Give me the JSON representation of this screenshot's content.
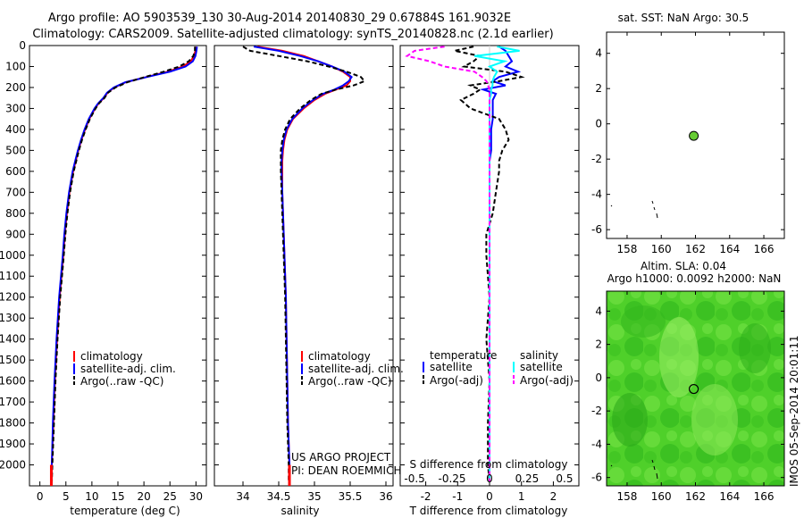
{
  "header": {
    "title_line1": "Argo profile: AO 5903539_130 30-Aug-2014 20140830_29 0.67884S 161.9032E",
    "title_line2": "Climatology: CARS2009. Satellite-adjusted climatology: synTS_20140828.nc (2.1d earlier)"
  },
  "side_text": "IMOS 05-Sep-2014 20:01:11",
  "project_text": [
    "US ARGO PROJECT",
    "PI: DEAN ROEMMICH"
  ],
  "colors": {
    "climatology": "#ff0000",
    "satellite_adj": "#0000ff",
    "argo": "#000000",
    "salinity_sat": "#00ffff",
    "salinity_argo": "#ff00ff",
    "point": "#66cc33",
    "map_bg": "#44cc22"
  },
  "chart_data": [
    {
      "id": "temperature",
      "type": "line",
      "xlabel": "temperature (deg C)",
      "ylabel": "",
      "xlim": [
        -2,
        32
      ],
      "ylim": [
        2100,
        0
      ],
      "xticks": [
        0,
        5,
        10,
        15,
        20,
        25,
        30
      ],
      "yticks": [
        0,
        100,
        200,
        300,
        400,
        500,
        600,
        700,
        800,
        900,
        1000,
        1100,
        1200,
        1300,
        1400,
        1500,
        1600,
        1700,
        1800,
        1900,
        2000
      ],
      "depths": [
        5,
        25,
        50,
        75,
        100,
        125,
        150,
        175,
        200,
        225,
        250,
        275,
        300,
        350,
        400,
        450,
        500,
        550,
        600,
        700,
        800,
        900,
        1000,
        1200,
        1400,
        1600,
        1800,
        2000,
        2080
      ],
      "series": [
        {
          "name": "climatology",
          "values": [
            30.0,
            29.9,
            29.6,
            29.0,
            27.5,
            24.5,
            20.5,
            16.5,
            14.3,
            13.0,
            12.3,
            11.3,
            10.6,
            9.5,
            8.7,
            8.0,
            7.4,
            6.9,
            6.4,
            5.7,
            5.2,
            4.8,
            4.5,
            3.8,
            3.3,
            2.9,
            2.6,
            2.3,
            2.2
          ]
        },
        {
          "name": "satellite-adj. clim.",
          "values": [
            30.2,
            30.1,
            29.9,
            29.4,
            28.0,
            25.0,
            20.6,
            16.4,
            14.2,
            12.9,
            12.2,
            11.2,
            10.5,
            9.4,
            8.6,
            7.9,
            7.3,
            6.8,
            6.3,
            5.6,
            5.1,
            4.7,
            4.4,
            3.7,
            3.2,
            2.8,
            2.5,
            2.3,
            2.2
          ]
        },
        {
          "name": "Argo(..raw -QC)",
          "values": [
            29.8,
            29.8,
            29.5,
            28.6,
            26.8,
            23.8,
            20.2,
            16.8,
            14.5,
            13.1,
            12.4,
            11.4,
            10.7,
            9.6,
            8.8,
            8.1,
            7.5,
            7.0,
            6.5,
            5.8,
            5.3,
            4.9,
            4.6,
            3.9,
            3.4,
            3.0,
            2.7,
            2.4,
            2.3
          ]
        }
      ],
      "legend": [
        "climatology",
        "satellite-adj. clim.",
        "Argo(..raw -QC)"
      ],
      "legend_position": "lower-center"
    },
    {
      "id": "salinity",
      "type": "line",
      "xlabel": "salinity",
      "ylabel": "",
      "xlim": [
        33.6,
        36.1
      ],
      "ylim": [
        2100,
        0
      ],
      "xticks": [
        34,
        34.5,
        35,
        35.5,
        36
      ],
      "depths": [
        5,
        25,
        50,
        75,
        100,
        125,
        150,
        170,
        190,
        210,
        230,
        260,
        300,
        350,
        400,
        450,
        500,
        550,
        600,
        700,
        800,
        900,
        1000,
        1200,
        1400,
        1600,
        1800,
        2000,
        2080
      ],
      "series": [
        {
          "name": "climatology",
          "values": [
            34.2,
            34.55,
            34.85,
            35.05,
            35.25,
            35.4,
            35.5,
            35.5,
            35.45,
            35.3,
            35.15,
            35.0,
            34.85,
            34.7,
            34.62,
            34.58,
            34.56,
            34.55,
            34.55,
            34.55,
            34.56,
            34.57,
            34.58,
            34.6,
            34.61,
            34.62,
            34.63,
            34.65,
            34.65
          ]
        },
        {
          "name": "satellite-adj. clim.",
          "values": [
            34.15,
            34.5,
            34.8,
            35.05,
            35.25,
            35.42,
            35.52,
            35.48,
            35.4,
            35.28,
            35.12,
            34.98,
            34.83,
            34.69,
            34.61,
            34.57,
            34.55,
            34.54,
            34.54,
            34.55,
            34.56,
            34.57,
            34.58,
            34.6,
            34.61,
            34.62,
            34.63,
            34.65,
            34.65
          ]
        },
        {
          "name": "Argo(..raw -QC)",
          "values": [
            34.0,
            34.1,
            34.5,
            34.9,
            35.2,
            35.45,
            35.65,
            35.7,
            35.55,
            35.3,
            35.1,
            34.95,
            34.8,
            34.66,
            34.59,
            34.55,
            34.53,
            34.53,
            34.53,
            34.54,
            34.55,
            34.56,
            34.57,
            34.59,
            34.6,
            34.61,
            34.62,
            34.64,
            34.64
          ]
        }
      ],
      "legend": [
        "climatology",
        "satellite-adj. clim.",
        "Argo(..raw -QC)"
      ],
      "legend_position": "lower-center"
    },
    {
      "id": "difference",
      "type": "line",
      "xlabel": "T difference from climatology",
      "xlabel_top": "S difference from climatology",
      "ylabel": "",
      "xlim": [
        -2.8,
        2.8
      ],
      "ylim": [
        2100,
        0
      ],
      "xticks": [
        -2,
        -1,
        0,
        1,
        2
      ],
      "sticks": [
        -0.5,
        -0.25,
        0,
        0.25,
        0.5
      ],
      "stick_labels": [
        "-0.5",
        "-0.25",
        "0",
        "0.25",
        "0.5"
      ],
      "depths": [
        5,
        25,
        50,
        75,
        100,
        125,
        150,
        170,
        190,
        210,
        230,
        260,
        300,
        350,
        400,
        450,
        500,
        550,
        600,
        700,
        800,
        900,
        1000,
        1200,
        1400,
        1600,
        1800,
        2000,
        2080
      ],
      "series": [
        {
          "name": "temperature satellite",
          "values": [
            0.3,
            0.5,
            0.6,
            0.7,
            0.5,
            0.9,
            0.3,
            0.1,
            0.5,
            -0.2,
            0.2,
            0.1,
            0.1,
            0.1,
            0.05,
            0.05,
            0.05,
            0.0,
            0.0,
            0.0,
            0.0,
            0.0,
            0.0,
            0.0,
            0.0,
            0.0,
            0.0,
            0.0,
            0.0
          ]
        },
        {
          "name": "temperature Argo(-adj)",
          "values": [
            -0.5,
            -1.1,
            -0.3,
            -0.5,
            -0.8,
            0.5,
            1.0,
            0.3,
            -0.6,
            -0.3,
            -0.5,
            -0.9,
            -0.6,
            0.3,
            0.5,
            0.6,
            0.4,
            0.3,
            0.3,
            0.2,
            0.1,
            -0.1,
            -0.1,
            0.0,
            -0.1,
            0.0,
            -0.05,
            -0.05,
            0.0
          ]
        },
        {
          "name": "salinity satellite",
          "values": [
            0.05,
            0.2,
            -0.1,
            0.1,
            0.0,
            0.05,
            0.03,
            0.02,
            0.02,
            0.01,
            0.01,
            0.0,
            0.0,
            0.0,
            0.0,
            0.0,
            0.0,
            0.0,
            0.0,
            0.0,
            0.0,
            0.0,
            0.0,
            0.0,
            0.0,
            0.0,
            0.0,
            0.0,
            0.0
          ]
        },
        {
          "name": "salinity Argo(-adj)",
          "values": [
            -0.3,
            -0.5,
            -0.55,
            -0.4,
            -0.3,
            -0.1,
            -0.05,
            -0.02,
            -0.01,
            0.0,
            0.0,
            0.0,
            0.0,
            0.0,
            0.0,
            0.0,
            0.0,
            0.0,
            0.0,
            0.0,
            0.0,
            0.0,
            0.0,
            0.0,
            0.0,
            0.0,
            0.0,
            0.0,
            0.0
          ]
        }
      ],
      "legend_titles": [
        "temperature",
        "salinity"
      ],
      "legend": [
        "satellite",
        "Argo(-adj)",
        "satellite",
        "Argo(-adj)"
      ],
      "legend_position": "lower-center"
    },
    {
      "id": "sst_map",
      "type": "scatter",
      "title": "sat. SST: NaN  Argo: 30.5",
      "xlim": [
        156.8,
        167.2
      ],
      "ylim": [
        -6.5,
        5.2
      ],
      "xticks": [
        158,
        160,
        162,
        164,
        166
      ],
      "yticks": [
        -6,
        -4,
        -2,
        0,
        2,
        4
      ],
      "point": {
        "lon": 161.9,
        "lat": -0.68
      }
    },
    {
      "id": "sla_map",
      "type": "heatmap",
      "title_line1": "Altim. SLA: 0.04",
      "title_line2": "Argo h1000: 0.0092 h2000: NaN",
      "xlim": [
        156.8,
        167.2
      ],
      "ylim": [
        -6.5,
        5.2
      ],
      "xticks": [
        158,
        160,
        162,
        164,
        166
      ],
      "yticks": [
        -6,
        -4,
        -2,
        0,
        2,
        4
      ],
      "point": {
        "lon": 161.9,
        "lat": -0.68
      }
    }
  ]
}
